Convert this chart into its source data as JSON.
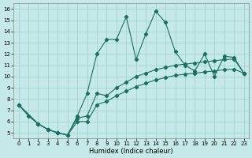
{
  "xlabel": "Humidex (Indice chaleur)",
  "bg_color": "#c5e8e8",
  "grid_color": "#9ecece",
  "line_color": "#1a7060",
  "xlim": [
    -0.5,
    23.5
  ],
  "ylim": [
    4.5,
    16.5
  ],
  "xticks": [
    0,
    1,
    2,
    3,
    4,
    5,
    6,
    7,
    8,
    9,
    10,
    11,
    12,
    13,
    14,
    15,
    16,
    17,
    18,
    19,
    20,
    21,
    22,
    23
  ],
  "yticks": [
    5,
    6,
    7,
    8,
    9,
    10,
    11,
    12,
    13,
    14,
    15,
    16
  ],
  "series1_x": [
    0,
    1,
    2,
    3,
    4,
    5,
    6,
    7,
    8,
    9,
    10,
    11,
    12,
    13,
    14,
    15,
    16,
    17,
    18,
    19,
    20,
    21,
    22,
    23
  ],
  "series1_y": [
    7.5,
    6.5,
    5.8,
    5.3,
    5.0,
    4.8,
    6.5,
    8.5,
    12.0,
    13.3,
    13.3,
    15.3,
    11.5,
    13.8,
    15.8,
    14.8,
    12.2,
    11.0,
    10.5,
    12.0,
    10.0,
    11.8,
    11.7,
    10.3
  ],
  "series2_x": [
    0,
    2,
    3,
    4,
    5,
    6,
    7,
    8,
    9,
    10,
    11,
    12,
    13,
    14,
    15,
    16,
    17,
    18,
    19,
    20,
    21,
    22,
    23
  ],
  "series2_y": [
    7.5,
    5.8,
    5.3,
    5.0,
    4.8,
    6.3,
    6.5,
    8.5,
    8.3,
    9.0,
    9.5,
    10.0,
    10.3,
    10.6,
    10.8,
    11.0,
    11.1,
    11.2,
    11.3,
    11.4,
    11.5,
    11.55,
    10.3
  ],
  "series3_x": [
    0,
    2,
    3,
    4,
    5,
    6,
    7,
    8,
    9,
    10,
    11,
    12,
    13,
    14,
    15,
    16,
    17,
    18,
    19,
    20,
    21,
    22,
    23
  ],
  "series3_y": [
    7.5,
    5.8,
    5.3,
    5.0,
    4.8,
    6.0,
    6.0,
    7.5,
    7.8,
    8.3,
    8.7,
    9.1,
    9.4,
    9.7,
    9.9,
    10.1,
    10.2,
    10.3,
    10.4,
    10.5,
    10.6,
    10.65,
    10.3
  ]
}
